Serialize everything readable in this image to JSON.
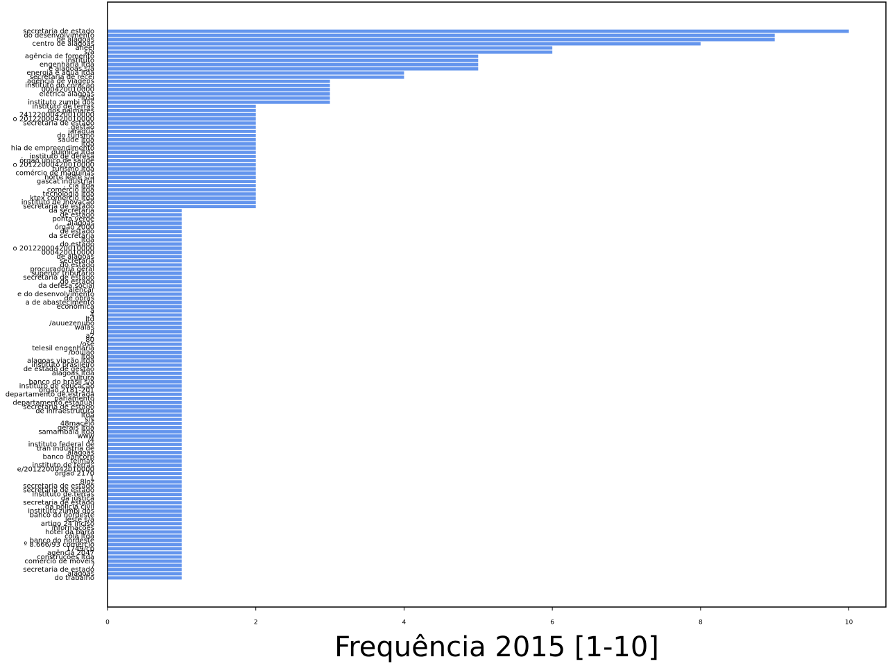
{
  "chart_data": {
    "type": "barh",
    "xlabel": "Frequência 2015 [1-10]",
    "xlim": [
      0,
      10.5
    ],
    "xticks": [
      0,
      2,
      4,
      6,
      8,
      10
    ],
    "color": "#6495ed",
    "categories": [
      "secretaria de estado",
      "do desenvolvimento",
      "de alagoas",
      "centro de alagoas",
      "aneel",
      "s/a",
      "agência de fomento",
      "instituto",
      "engenharia ltda",
      "e alagoas s/a",
      "energia e água ltda",
      "secretaria de recei",
      "agência de viagens",
      "instituto do coração",
      "000420010000",
      "elétrica alagoas",
      "ltda",
      "instituto zumbi dos",
      "instituto de terras",
      "dos palmares",
      "24122000420010000",
      "o 20122000420010000",
      "secretaria de estado",
      "gestão",
      "jaraguá",
      "do turismo",
      "saúde ltda",
      "ltda",
      "hia de empreendimento",
      "química ltda",
      "instituto de defesa",
      "órgão único de saúde",
      "o 20122000420010000",
      "turismo ltda",
      "comércio de máquinas",
      "norte leste s/a",
      "gascat industrial",
      "cia ltda",
      "comércio ltda",
      "tecnologia ltda",
      "ktex comércio ltda",
      "instituto de inovação",
      "secretaria de estado",
      "da secretaria",
      "de estado",
      "ponta verde",
      "alagoas",
      "órgão 2000",
      "de estado",
      "da secretaria",
      "ltda",
      "do estado",
      "o 20122000420010000",
      "000420010000",
      "de alagoas",
      "secretaria",
      "do estado",
      "procuradoria geral",
      "superior tributário",
      "secretaria de estado",
      "do estado",
      "da defesa social",
      "alencar",
      "e do desenvolvimento",
      "de obras",
      "a de abastecimento",
      "econômica",
      "a",
      "4",
      "ltd",
      "/auuezenubo",
      "walas",
      "/i",
      "a2",
      "80",
      "/osé",
      "telesil engenharia",
      "/boulao",
      "ltda",
      "alagoas viação ltda",
      "instituto brasileiro",
      "de estado de gestão",
      "alagoas ltda",
      "cultura",
      "banco do brasil s/a",
      "instituto de educação",
      "órgão 2181-201",
      "departamento de estrada",
      "parlamento",
      "departamento estadual",
      "secretaria de estado",
      "de infraestrutura",
      "ltda",
      "s/s",
      "48maceió",
      "gerais ltda",
      "samambaia ltda",
      "www",
      "/4",
      "instituto federal de",
      "tran indústria de",
      "alagoas",
      "banco bancorp",
      "telmax",
      "instituto de terras",
      "e/2012200042010000",
      "órgão 2170",
      "1",
      "8loz",
      "secretaria de estado",
      "secretaria de estado",
      "instituto de terras",
      "da justiça",
      "secretaria de estado",
      "da polícia civil",
      "instituto zumbi dos",
      "banco do nordeste",
      "leste s/a",
      "artigo 24 inciso",
      "informações",
      "hotel da barra",
      "cola ltda",
      "banco do nordeste",
      "º 8.666/93 comércio",
      "1749/cp",
      "agência 2047",
      "construções ltda",
      "comércio de móveis",
      "/",
      "secretaria de estado",
      "alagoas",
      "do trabalho"
    ],
    "values": [
      10,
      9,
      9,
      8,
      6,
      6,
      5,
      5,
      5,
      5,
      4,
      4,
      3,
      3,
      3,
      3,
      3,
      3,
      2,
      2,
      2,
      2,
      2,
      2,
      2,
      2,
      2,
      2,
      2,
      2,
      2,
      2,
      2,
      2,
      2,
      2,
      2,
      2,
      2,
      2,
      2,
      2,
      2,
      1,
      1,
      1,
      1,
      1,
      1,
      1,
      1,
      1,
      1,
      1,
      1,
      1,
      1,
      1,
      1,
      1,
      1,
      1,
      1,
      1,
      1,
      1,
      1,
      1,
      1,
      1,
      1,
      1,
      1,
      1,
      1,
      1,
      1,
      1,
      1,
      1,
      1,
      1,
      1,
      1,
      1,
      1,
      1,
      1,
      1,
      1,
      1,
      1,
      1,
      1,
      1,
      1,
      1,
      1,
      1,
      1,
      1,
      1,
      1,
      1,
      1,
      1,
      1,
      1,
      1,
      1,
      1,
      1,
      1,
      1,
      1,
      1,
      1,
      1,
      1,
      1,
      1,
      1,
      1,
      1,
      1,
      1,
      1,
      1,
      1,
      1,
      1,
      1
    ]
  }
}
